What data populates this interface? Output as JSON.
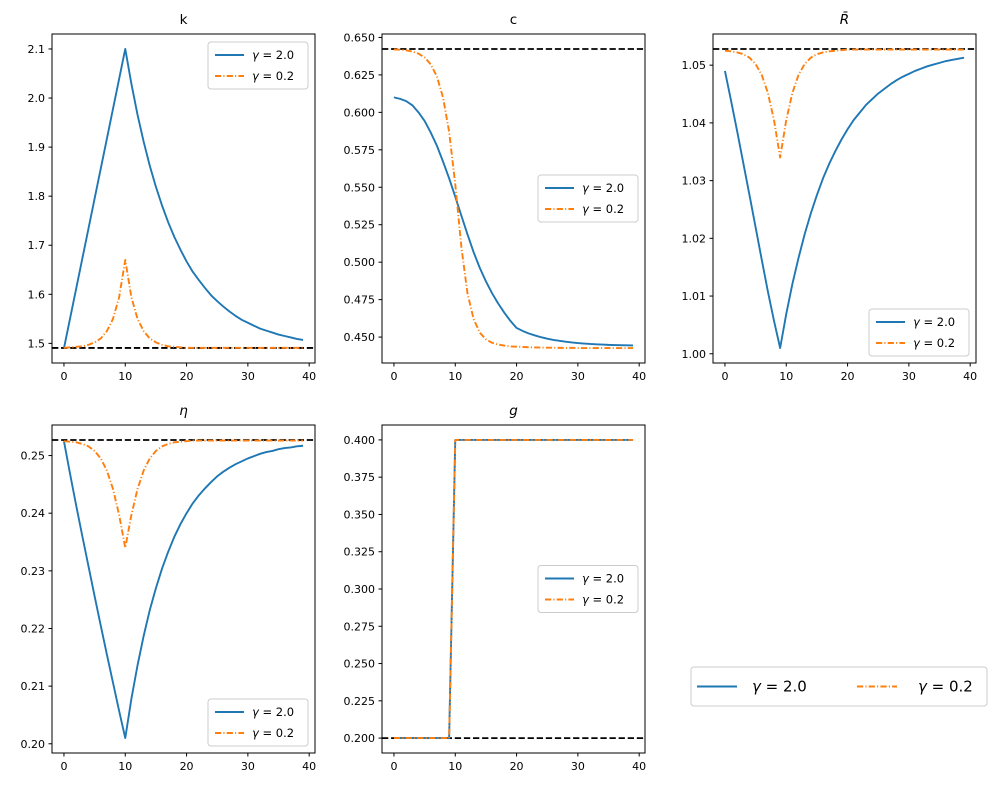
{
  "colors": {
    "gamma_2_0": "#1f77b4",
    "gamma_0_2": "#ff7f0e",
    "steady_state": "#000000",
    "axis": "#000000",
    "legend_border": "#cccccc",
    "background": "#ffffff"
  },
  "chart_data": {
    "type": "line",
    "layout": "2x3 subplot grid, 5 plots used, figure-level horizontal legend in empty bottom-right cell",
    "grid": false,
    "x": [
      0,
      1,
      2,
      3,
      4,
      5,
      6,
      7,
      8,
      9,
      10,
      11,
      12,
      13,
      14,
      15,
      16,
      17,
      18,
      19,
      20,
      21,
      22,
      23,
      24,
      25,
      26,
      27,
      28,
      29,
      30,
      31,
      32,
      33,
      34,
      35,
      36,
      37,
      38,
      39
    ],
    "legend": {
      "entries": [
        {
          "key": "gamma_2_0",
          "label": "γ = 2.0",
          "color": "#1f77b4",
          "style": "solid"
        },
        {
          "key": "gamma_0_2",
          "label": "γ = 0.2",
          "color": "#ff7f0e",
          "style": "dashdot"
        }
      ]
    },
    "figure_legend": {
      "orientation": "horizontal",
      "position": "bottom-right cell",
      "entries": [
        {
          "key": "gamma_2_0",
          "label": "γ = 2.0",
          "color": "#1f77b4",
          "style": "solid"
        },
        {
          "key": "gamma_0_2",
          "label": "γ = 0.2",
          "color": "#ff7f0e",
          "style": "dashdot"
        }
      ]
    },
    "plots": [
      {
        "id": "k",
        "title": "k",
        "title_style": "normal",
        "xlim": [
          -1.95,
          40.95
        ],
        "ylim": [
          1.46,
          2.1305
        ],
        "xticks": {
          "values": [
            0,
            10,
            20,
            30,
            40
          ],
          "labels": [
            "0",
            "10",
            "20",
            "30",
            "40"
          ]
        },
        "yticks": {
          "values": [
            1.5,
            1.6,
            1.7,
            1.8,
            1.9,
            2.0,
            2.1
          ],
          "labels": [
            "1.5",
            "1.6",
            "1.7",
            "1.8",
            "1.9",
            "2.0",
            "2.1"
          ]
        },
        "steady_state": 1.4907,
        "legend_loc": "upper right",
        "series": [
          {
            "key": "gamma_2_0",
            "name": "γ = 2.0",
            "color": "#1f77b4",
            "style": "solid",
            "values": [
              1.49,
              1.551,
              1.612,
              1.673,
              1.734,
              1.795,
              1.856,
              1.917,
              1.978,
              2.039,
              2.1,
              2.029,
              1.966,
              1.911,
              1.862,
              1.819,
              1.781,
              1.747,
              1.717,
              1.691,
              1.667,
              1.646,
              1.629,
              1.613,
              1.598,
              1.586,
              1.575,
              1.565,
              1.556,
              1.548,
              1.542,
              1.536,
              1.53,
              1.526,
              1.522,
              1.518,
              1.515,
              1.512,
              1.509,
              1.507
            ]
          },
          {
            "key": "gamma_0_2",
            "name": "γ = 0.2",
            "color": "#ff7f0e",
            "style": "dashdot",
            "values": [
              1.491,
              1.492,
              1.493,
              1.494,
              1.497,
              1.502,
              1.51,
              1.525,
              1.55,
              1.594,
              1.67,
              1.594,
              1.55,
              1.525,
              1.51,
              1.502,
              1.497,
              1.494,
              1.493,
              1.492,
              1.491,
              1.491,
              1.491,
              1.491,
              1.491,
              1.491,
              1.491,
              1.491,
              1.491,
              1.491,
              1.491,
              1.491,
              1.491,
              1.491,
              1.491,
              1.491,
              1.491,
              1.491,
              1.491,
              1.491
            ]
          }
        ]
      },
      {
        "id": "c",
        "title": "c",
        "title_style": "normal",
        "xlim": [
          -1.95,
          40.95
        ],
        "ylim": [
          0.4327,
          0.6523
        ],
        "xticks": {
          "values": [
            0,
            10,
            20,
            30,
            40
          ],
          "labels": [
            "0",
            "10",
            "20",
            "30",
            "40"
          ]
        },
        "yticks": {
          "values": [
            0.45,
            0.475,
            0.5,
            0.525,
            0.55,
            0.575,
            0.6,
            0.625,
            0.65
          ],
          "labels": [
            "0.450",
            "0.475",
            "0.500",
            "0.525",
            "0.550",
            "0.575",
            "0.600",
            "0.625",
            "0.650"
          ]
        },
        "steady_state": 0.6423,
        "legend_loc": "center right",
        "series": [
          {
            "key": "gamma_2_0",
            "name": "γ = 2.0",
            "color": "#1f77b4",
            "style": "solid",
            "values": [
              0.61,
              0.609,
              0.6075,
              0.6047,
              0.6,
              0.5943,
              0.5865,
              0.5778,
              0.5672,
              0.556,
              0.5437,
              0.531,
              0.5185,
              0.5066,
              0.4962,
              0.4872,
              0.4793,
              0.4724,
              0.4663,
              0.4608,
              0.4561,
              0.4541,
              0.4524,
              0.4511,
              0.4499,
              0.4489,
              0.4481,
              0.4475,
              0.4469,
              0.4464,
              0.446,
              0.4457,
              0.4454,
              0.4452,
              0.445,
              0.4448,
              0.4447,
              0.4446,
              0.4445,
              0.4444
            ]
          },
          {
            "key": "gamma_0_2",
            "name": "γ = 0.2",
            "color": "#ff7f0e",
            "style": "dashdot",
            "values": [
              0.642,
              0.6418,
              0.6414,
              0.6406,
              0.6392,
              0.6367,
              0.632,
              0.624,
              0.61,
              0.587,
              0.552,
              0.51,
              0.479,
              0.462,
              0.453,
              0.4485,
              0.4462,
              0.445,
              0.4443,
              0.4438,
              0.4436,
              0.4434,
              0.4432,
              0.4431,
              0.443,
              0.4429,
              0.4429,
              0.4428,
              0.4428,
              0.4428,
              0.4427,
              0.4427,
              0.4427,
              0.4427,
              0.4427,
              0.4427,
              0.4427,
              0.4427,
              0.4427,
              0.4427
            ]
          }
        ]
      },
      {
        "id": "Rbar",
        "title": "R̄",
        "title_style": "italic",
        "xlim": [
          -1.95,
          40.95
        ],
        "ylim": [
          0.9984,
          1.0554
        ],
        "xticks": {
          "values": [
            0,
            10,
            20,
            30,
            40
          ],
          "labels": [
            "0",
            "10",
            "20",
            "30",
            "40"
          ]
        },
        "yticks": {
          "values": [
            1.0,
            1.01,
            1.02,
            1.03,
            1.04,
            1.05
          ],
          "labels": [
            "1.00",
            "1.01",
            "1.02",
            "1.03",
            "1.04",
            "1.05"
          ]
        },
        "steady_state": 1.0528,
        "legend_loc": "lower right",
        "series": [
          {
            "key": "gamma_2_0",
            "name": "γ = 2.0",
            "color": "#1f77b4",
            "style": "solid",
            "values": [
              1.049,
              1.0438,
              1.0385,
              1.033,
              1.0275,
              1.0219,
              1.0163,
              1.0108,
              1.0057,
              1.001,
              1.0069,
              1.0121,
              1.0166,
              1.0207,
              1.0243,
              1.0275,
              1.0304,
              1.0329,
              1.0351,
              1.0371,
              1.0389,
              1.0405,
              1.0418,
              1.0431,
              1.0441,
              1.0451,
              1.0459,
              1.0467,
              1.0474,
              1.048,
              1.0485,
              1.049,
              1.0494,
              1.0498,
              1.0501,
              1.0504,
              1.0507,
              1.0509,
              1.0511,
              1.0513
            ]
          },
          {
            "key": "gamma_0_2",
            "name": "γ = 0.2",
            "color": "#ff7f0e",
            "style": "dashdot",
            "values": [
              1.0525,
              1.0524,
              1.0522,
              1.0519,
              1.0513,
              1.0502,
              1.0483,
              1.0452,
              1.0405,
              1.034,
              1.0405,
              1.0452,
              1.0483,
              1.0502,
              1.0513,
              1.0519,
              1.0522,
              1.0524,
              1.0525,
              1.0526,
              1.0527,
              1.0527,
              1.0527,
              1.0527,
              1.0527,
              1.0527,
              1.0527,
              1.0527,
              1.0527,
              1.0527,
              1.0527,
              1.0527,
              1.0527,
              1.0527,
              1.0527,
              1.0527,
              1.0527,
              1.0527,
              1.0527,
              1.0527
            ]
          }
        ]
      },
      {
        "id": "eta",
        "title": "η",
        "title_style": "italic",
        "xlim": [
          -1.95,
          40.95
        ],
        "ylim": [
          0.1984,
          0.2553
        ],
        "xticks": {
          "values": [
            0,
            10,
            20,
            30,
            40
          ],
          "labels": [
            "0",
            "10",
            "20",
            "30",
            "40"
          ]
        },
        "yticks": {
          "values": [
            0.2,
            0.21,
            0.22,
            0.23,
            0.24,
            0.25
          ],
          "labels": [
            "0.20",
            "0.21",
            "0.22",
            "0.23",
            "0.24",
            "0.25"
          ]
        },
        "steady_state": 0.2527,
        "legend_loc": "lower right",
        "series": [
          {
            "key": "gamma_2_0",
            "name": "γ = 2.0",
            "color": "#1f77b4",
            "style": "solid",
            "values": [
              0.2525,
              0.2468,
              0.2413,
              0.236,
              0.2308,
              0.2256,
              0.2205,
              0.2155,
              0.2106,
              0.2057,
              0.201,
              0.2078,
              0.2136,
              0.2187,
              0.2232,
              0.227,
              0.2304,
              0.2333,
              0.2359,
              0.2381,
              0.24,
              0.2417,
              0.2431,
              0.2443,
              0.2454,
              0.2464,
              0.2472,
              0.2479,
              0.2485,
              0.249,
              0.2495,
              0.2499,
              0.2503,
              0.2506,
              0.2508,
              0.2511,
              0.2513,
              0.2514,
              0.2516,
              0.2517
            ]
          },
          {
            "key": "gamma_0_2",
            "name": "γ = 0.2",
            "color": "#ff7f0e",
            "style": "dashdot",
            "values": [
              0.2525,
              0.2524,
              0.2523,
              0.252,
              0.2516,
              0.2508,
              0.2495,
              0.2474,
              0.2442,
              0.2397,
              0.234,
              0.2397,
              0.2442,
              0.2474,
              0.2495,
              0.2508,
              0.2516,
              0.252,
              0.2523,
              0.2524,
              0.2525,
              0.2526,
              0.2526,
              0.2526,
              0.2526,
              0.2526,
              0.2526,
              0.2526,
              0.2526,
              0.2526,
              0.2526,
              0.2526,
              0.2526,
              0.2526,
              0.2526,
              0.2526,
              0.2526,
              0.2526,
              0.2526,
              0.2526
            ]
          }
        ]
      },
      {
        "id": "g",
        "title": "g",
        "title_style": "italic",
        "xlim": [
          -1.95,
          40.95
        ],
        "ylim": [
          0.19,
          0.41
        ],
        "xticks": {
          "values": [
            0,
            10,
            20,
            30,
            40
          ],
          "labels": [
            "0",
            "10",
            "20",
            "30",
            "40"
          ]
        },
        "yticks": {
          "values": [
            0.2,
            0.225,
            0.25,
            0.275,
            0.3,
            0.325,
            0.35,
            0.375,
            0.4
          ],
          "labels": [
            "0.200",
            "0.225",
            "0.250",
            "0.275",
            "0.300",
            "0.325",
            "0.350",
            "0.375",
            "0.400"
          ]
        },
        "steady_state": 0.2,
        "legend_loc": "center right",
        "series": [
          {
            "key": "gamma_2_0",
            "name": "γ = 2.0",
            "color": "#1f77b4",
            "style": "solid",
            "values": [
              0.2,
              0.2,
              0.2,
              0.2,
              0.2,
              0.2,
              0.2,
              0.2,
              0.2,
              0.2,
              0.4,
              0.4,
              0.4,
              0.4,
              0.4,
              0.4,
              0.4,
              0.4,
              0.4,
              0.4,
              0.4,
              0.4,
              0.4,
              0.4,
              0.4,
              0.4,
              0.4,
              0.4,
              0.4,
              0.4,
              0.4,
              0.4,
              0.4,
              0.4,
              0.4,
              0.4,
              0.4,
              0.4,
              0.4,
              0.4
            ]
          },
          {
            "key": "gamma_0_2",
            "name": "γ = 0.2",
            "color": "#ff7f0e",
            "style": "dashdot",
            "values": [
              0.2,
              0.2,
              0.2,
              0.2,
              0.2,
              0.2,
              0.2,
              0.2,
              0.2,
              0.2,
              0.4,
              0.4,
              0.4,
              0.4,
              0.4,
              0.4,
              0.4,
              0.4,
              0.4,
              0.4,
              0.4,
              0.4,
              0.4,
              0.4,
              0.4,
              0.4,
              0.4,
              0.4,
              0.4,
              0.4,
              0.4,
              0.4,
              0.4,
              0.4,
              0.4,
              0.4,
              0.4,
              0.4,
              0.4,
              0.4
            ]
          }
        ]
      }
    ]
  }
}
